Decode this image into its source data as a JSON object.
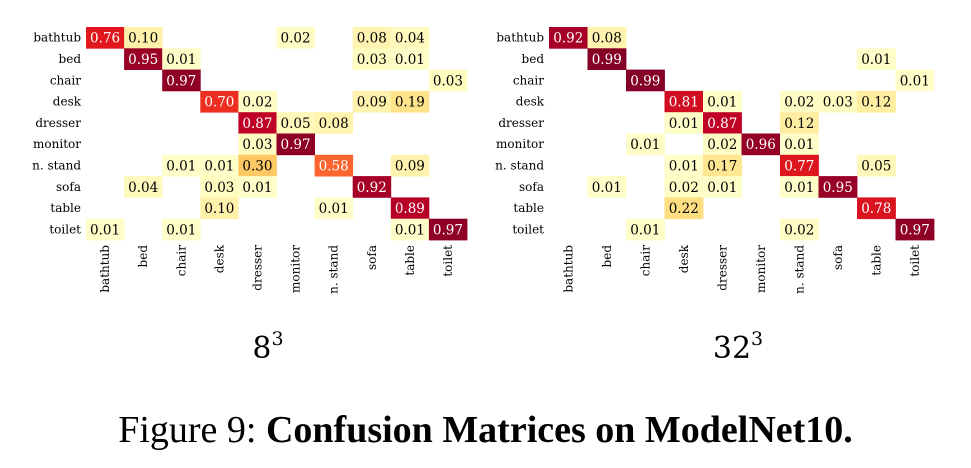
{
  "caption": {
    "prefix": "Figure 9: ",
    "title": "Confusion Matrices on ModelNet10."
  },
  "chart_data": [
    {
      "type": "heatmap",
      "title": "8³",
      "rows": [
        "bathtub",
        "bed",
        "chair",
        "desk",
        "dresser",
        "monitor",
        "n. stand",
        "sofa",
        "table",
        "toilet"
      ],
      "cols": [
        "bathtub",
        "bed",
        "chair",
        "desk",
        "dresser",
        "monitor",
        "n. stand",
        "sofa",
        "table",
        "toilet"
      ],
      "colormap": "YlOrRd",
      "vmin": 0,
      "vmax": 1,
      "cells": [
        [
          0,
          0,
          0.76
        ],
        [
          0,
          1,
          0.1
        ],
        [
          0,
          5,
          0.02
        ],
        [
          0,
          7,
          0.08
        ],
        [
          0,
          8,
          0.04
        ],
        [
          1,
          1,
          0.95
        ],
        [
          1,
          2,
          0.01
        ],
        [
          1,
          7,
          0.03
        ],
        [
          1,
          8,
          0.01
        ],
        [
          2,
          2,
          0.97
        ],
        [
          2,
          9,
          0.03
        ],
        [
          3,
          3,
          0.7
        ],
        [
          3,
          4,
          0.02
        ],
        [
          3,
          7,
          0.09
        ],
        [
          3,
          8,
          0.19
        ],
        [
          4,
          4,
          0.87
        ],
        [
          4,
          5,
          0.05
        ],
        [
          4,
          6,
          0.08
        ],
        [
          5,
          4,
          0.03
        ],
        [
          5,
          5,
          0.97
        ],
        [
          6,
          2,
          0.01
        ],
        [
          6,
          3,
          0.01
        ],
        [
          6,
          4,
          0.3
        ],
        [
          6,
          6,
          0.58
        ],
        [
          6,
          8,
          0.09
        ],
        [
          7,
          1,
          0.04
        ],
        [
          7,
          3,
          0.03
        ],
        [
          7,
          4,
          0.01
        ],
        [
          7,
          7,
          0.92
        ],
        [
          8,
          3,
          0.1
        ],
        [
          8,
          6,
          0.01
        ],
        [
          8,
          8,
          0.89
        ],
        [
          9,
          0,
          0.01
        ],
        [
          9,
          2,
          0.01
        ],
        [
          9,
          8,
          0.01
        ],
        [
          9,
          9,
          0.97
        ]
      ]
    },
    {
      "type": "heatmap",
      "title": "32³",
      "rows": [
        "bathtub",
        "bed",
        "chair",
        "desk",
        "dresser",
        "monitor",
        "n. stand",
        "sofa",
        "table",
        "toilet"
      ],
      "cols": [
        "bathtub",
        "bed",
        "chair",
        "desk",
        "dresser",
        "monitor",
        "n. stand",
        "sofa",
        "table",
        "toilet"
      ],
      "colormap": "YlOrRd",
      "vmin": 0,
      "vmax": 1,
      "cells": [
        [
          0,
          0,
          0.92
        ],
        [
          0,
          1,
          0.08
        ],
        [
          1,
          1,
          0.99
        ],
        [
          1,
          8,
          0.01
        ],
        [
          2,
          2,
          0.99
        ],
        [
          2,
          9,
          0.01
        ],
        [
          3,
          3,
          0.81
        ],
        [
          3,
          4,
          0.01
        ],
        [
          3,
          6,
          0.02
        ],
        [
          3,
          7,
          0.03
        ],
        [
          3,
          8,
          0.12
        ],
        [
          4,
          3,
          0.01
        ],
        [
          4,
          4,
          0.87
        ],
        [
          4,
          6,
          0.12
        ],
        [
          5,
          2,
          0.01
        ],
        [
          5,
          4,
          0.02
        ],
        [
          5,
          5,
          0.96
        ],
        [
          5,
          6,
          0.01
        ],
        [
          6,
          3,
          0.01
        ],
        [
          6,
          4,
          0.17
        ],
        [
          6,
          6,
          0.77
        ],
        [
          6,
          8,
          0.05
        ],
        [
          7,
          1,
          0.01
        ],
        [
          7,
          3,
          0.02
        ],
        [
          7,
          4,
          0.01
        ],
        [
          7,
          6,
          0.01
        ],
        [
          7,
          7,
          0.95
        ],
        [
          8,
          3,
          0.22
        ],
        [
          8,
          8,
          0.78
        ],
        [
          9,
          2,
          0.01
        ],
        [
          9,
          6,
          0.02
        ],
        [
          9,
          9,
          0.97
        ]
      ]
    }
  ]
}
